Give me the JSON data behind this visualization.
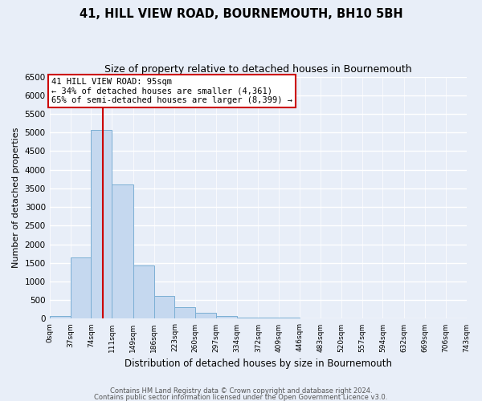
{
  "title": "41, HILL VIEW ROAD, BOURNEMOUTH, BH10 5BH",
  "subtitle": "Size of property relative to detached houses in Bournemouth",
  "xlabel": "Distribution of detached houses by size in Bournemouth",
  "ylabel": "Number of detached properties",
  "footer_line1": "Contains HM Land Registry data © Crown copyright and database right 2024.",
  "footer_line2": "Contains public sector information licensed under the Open Government Licence v3.0.",
  "bin_edges": [
    0,
    37,
    74,
    111,
    149,
    186,
    223,
    260,
    297,
    334,
    372,
    409,
    446,
    483,
    520,
    557,
    594,
    632,
    669,
    706,
    743
  ],
  "bin_counts": [
    75,
    1650,
    5080,
    3600,
    1420,
    610,
    300,
    150,
    75,
    40,
    30,
    25,
    20,
    10,
    5,
    5,
    5,
    5,
    5,
    5
  ],
  "bar_color": "#c5d8ef",
  "bar_edge_color": "#7bafd4",
  "vline_x": 95,
  "vline_color": "#cc0000",
  "ylim": [
    0,
    6500
  ],
  "yticks": [
    0,
    500,
    1000,
    1500,
    2000,
    2500,
    3000,
    3500,
    4000,
    4500,
    5000,
    5500,
    6000,
    6500
  ],
  "annotation_title": "41 HILL VIEW ROAD: 95sqm",
  "annotation_line1": "← 34% of detached houses are smaller (4,361)",
  "annotation_line2": "65% of semi-detached houses are larger (8,399) →",
  "annotation_box_facecolor": "#ffffff",
  "annotation_box_edgecolor": "#cc0000",
  "fig_background_color": "#e8eef8",
  "plot_background_color": "#e8eef8",
  "grid_color": "#ffffff"
}
